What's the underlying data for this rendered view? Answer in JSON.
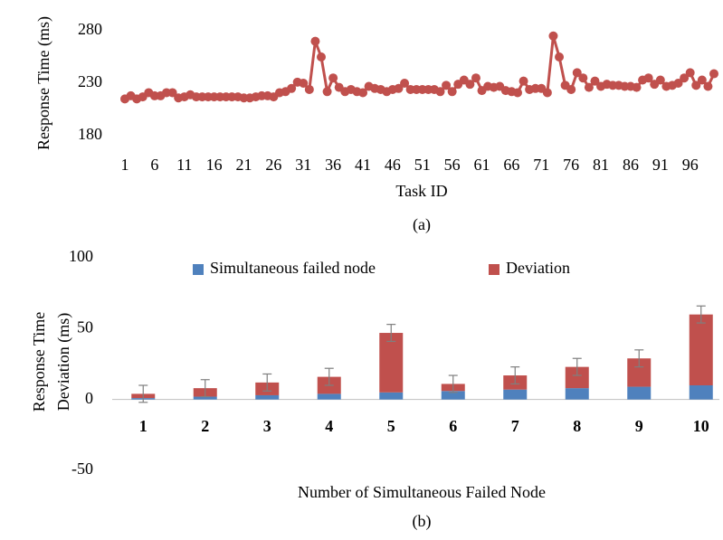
{
  "chart_data": [
    {
      "type": "line",
      "caption": "(a)",
      "x_label": "Task ID",
      "y_label": "Response Time (ms)",
      "x": [
        1,
        2,
        3,
        4,
        5,
        6,
        7,
        8,
        9,
        10,
        11,
        12,
        13,
        14,
        15,
        16,
        17,
        18,
        19,
        20,
        21,
        22,
        23,
        24,
        25,
        26,
        27,
        28,
        29,
        30,
        31,
        32,
        33,
        34,
        35,
        36,
        37,
        38,
        39,
        40,
        41,
        42,
        43,
        44,
        45,
        46,
        47,
        48,
        49,
        50,
        51,
        52,
        53,
        54,
        55,
        56,
        57,
        58,
        59,
        60,
        61,
        62,
        63,
        64,
        65,
        66,
        67,
        68,
        69,
        70,
        71,
        72,
        73,
        74,
        75,
        76,
        77,
        78,
        79,
        80,
        81,
        82,
        83,
        84,
        85,
        86,
        87,
        88,
        89,
        90,
        91,
        92,
        93,
        94,
        95,
        96,
        97,
        98,
        99,
        100
      ],
      "series": [
        {
          "name": "Response Time",
          "color": "#c0504d",
          "values": [
            215,
            218,
            215,
            217,
            221,
            218,
            218,
            221,
            221,
            216,
            217,
            219,
            217,
            217,
            217,
            217,
            217,
            217,
            217,
            217,
            216,
            216,
            217,
            218,
            218,
            217,
            221,
            222,
            225,
            231,
            230,
            224,
            270,
            255,
            222,
            235,
            226,
            222,
            224,
            222,
            221,
            227,
            225,
            224,
            222,
            224,
            225,
            230,
            224,
            224,
            224,
            224,
            224,
            222,
            228,
            222,
            229,
            233,
            229,
            235,
            223,
            227,
            226,
            227,
            223,
            222,
            221,
            232,
            224,
            225,
            225,
            221,
            275,
            255,
            228,
            224,
            240,
            235,
            226,
            232,
            227,
            229,
            228,
            228,
            227,
            227,
            226,
            233,
            235,
            229,
            233,
            227,
            228,
            230,
            235,
            240,
            228,
            233,
            227,
            239
          ]
        }
      ],
      "xlim": [
        1,
        100
      ],
      "xticks": [
        1,
        6,
        11,
        16,
        21,
        26,
        31,
        36,
        41,
        46,
        51,
        56,
        61,
        66,
        71,
        76,
        81,
        86,
        91,
        96
      ],
      "ylim": [
        180,
        280
      ],
      "yticks": [
        180,
        230,
        280
      ]
    },
    {
      "type": "bar",
      "stacked": true,
      "caption": "(b)",
      "x_label": "Number of Simultaneous Failed Node",
      "y_label": [
        "Response Time",
        "Deviation (ms)"
      ],
      "categories": [
        "1",
        "2",
        "3",
        "4",
        "5",
        "6",
        "7",
        "8",
        "9",
        "10"
      ],
      "series": [
        {
          "name": "Simultaneous failed node",
          "color": "#4f81bd",
          "values": [
            1,
            2,
            3,
            4,
            5,
            6,
            7,
            8,
            9,
            10
          ]
        },
        {
          "name": "Deviation",
          "color": "#c0504d",
          "values": [
            3,
            6,
            9,
            12,
            42,
            5,
            10,
            15,
            20,
            50
          ],
          "errors": [
            6,
            6,
            6,
            6,
            6,
            6,
            6,
            6,
            6,
            6
          ]
        }
      ],
      "ylim": [
        -50,
        100
      ],
      "yticks": [
        -50,
        0,
        50,
        100
      ],
      "legend": "top"
    }
  ]
}
